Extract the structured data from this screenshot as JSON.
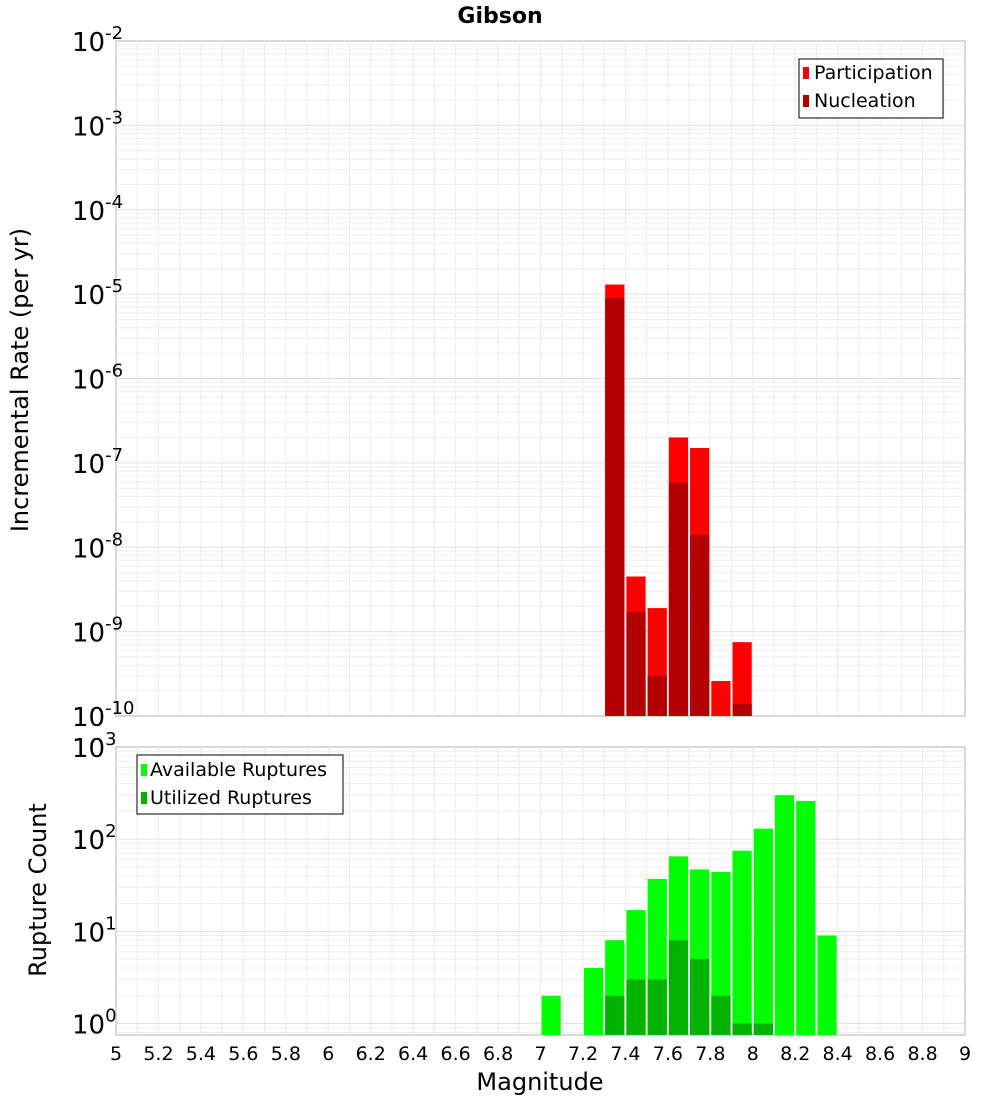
{
  "title": "Gibson",
  "xlabel": "Magnitude",
  "x_ticks": [
    "5",
    "5.2",
    "5.4",
    "5.6",
    "5.8",
    "6",
    "6.2",
    "6.4",
    "6.6",
    "6.8",
    "7",
    "7.2",
    "7.4",
    "7.6",
    "7.8",
    "8",
    "8.2",
    "8.4",
    "8.6",
    "8.8",
    "9"
  ],
  "colors": {
    "participation": "#ff0000",
    "nucleation": "#b30000",
    "available": "#00ff00",
    "utilized": "#00b300"
  },
  "chart_data": [
    {
      "type": "bar",
      "panel": "rates",
      "ylabel": "Incremental Rate (per yr)",
      "yscale": "log",
      "ylim": [
        1e-10,
        0.01
      ],
      "xlim": [
        5,
        9
      ],
      "bin_width": 0.1,
      "y_tick_exponents": [
        "-10",
        "-9",
        "-8",
        "-7",
        "-6",
        "-5",
        "-4",
        "-3",
        "-2"
      ],
      "legend_position": "top-right",
      "series": [
        {
          "name": "Participation",
          "x": [
            7.35,
            7.45,
            7.55,
            7.65,
            7.75,
            7.85,
            7.95
          ],
          "values": [
            1.3e-05,
            4.5e-09,
            1.9e-09,
            2e-07,
            1.5e-07,
            2.6e-10,
            7.5e-10
          ]
        },
        {
          "name": "Nucleation",
          "x": [
            7.35,
            7.45,
            7.55,
            7.65,
            7.75,
            7.95
          ],
          "values": [
            9e-06,
            1.7e-09,
            3e-10,
            5.8e-08,
            1.4e-08,
            1.4e-10
          ]
        }
      ]
    },
    {
      "type": "bar",
      "panel": "counts",
      "ylabel": "Rupture Count",
      "yscale": "log",
      "ylim": [
        0.75,
        1000
      ],
      "xlim": [
        5,
        9
      ],
      "bin_width": 0.1,
      "y_tick_exponents": [
        "0",
        "1",
        "2",
        "3"
      ],
      "legend_position": "top-left",
      "series": [
        {
          "name": "Available Ruptures",
          "x": [
            7.05,
            7.25,
            7.35,
            7.45,
            7.55,
            7.65,
            7.75,
            7.85,
            7.95,
            8.05,
            8.15,
            8.25,
            8.35
          ],
          "values": [
            2,
            4,
            8,
            17,
            37,
            65,
            47,
            44,
            75,
            130,
            300,
            260,
            9
          ]
        },
        {
          "name": "Utilized Ruptures",
          "x": [
            7.35,
            7.45,
            7.55,
            7.65,
            7.75,
            7.85,
            7.95,
            8.05
          ],
          "values": [
            2,
            3,
            3,
            8,
            5,
            2,
            1,
            1
          ]
        }
      ]
    }
  ]
}
